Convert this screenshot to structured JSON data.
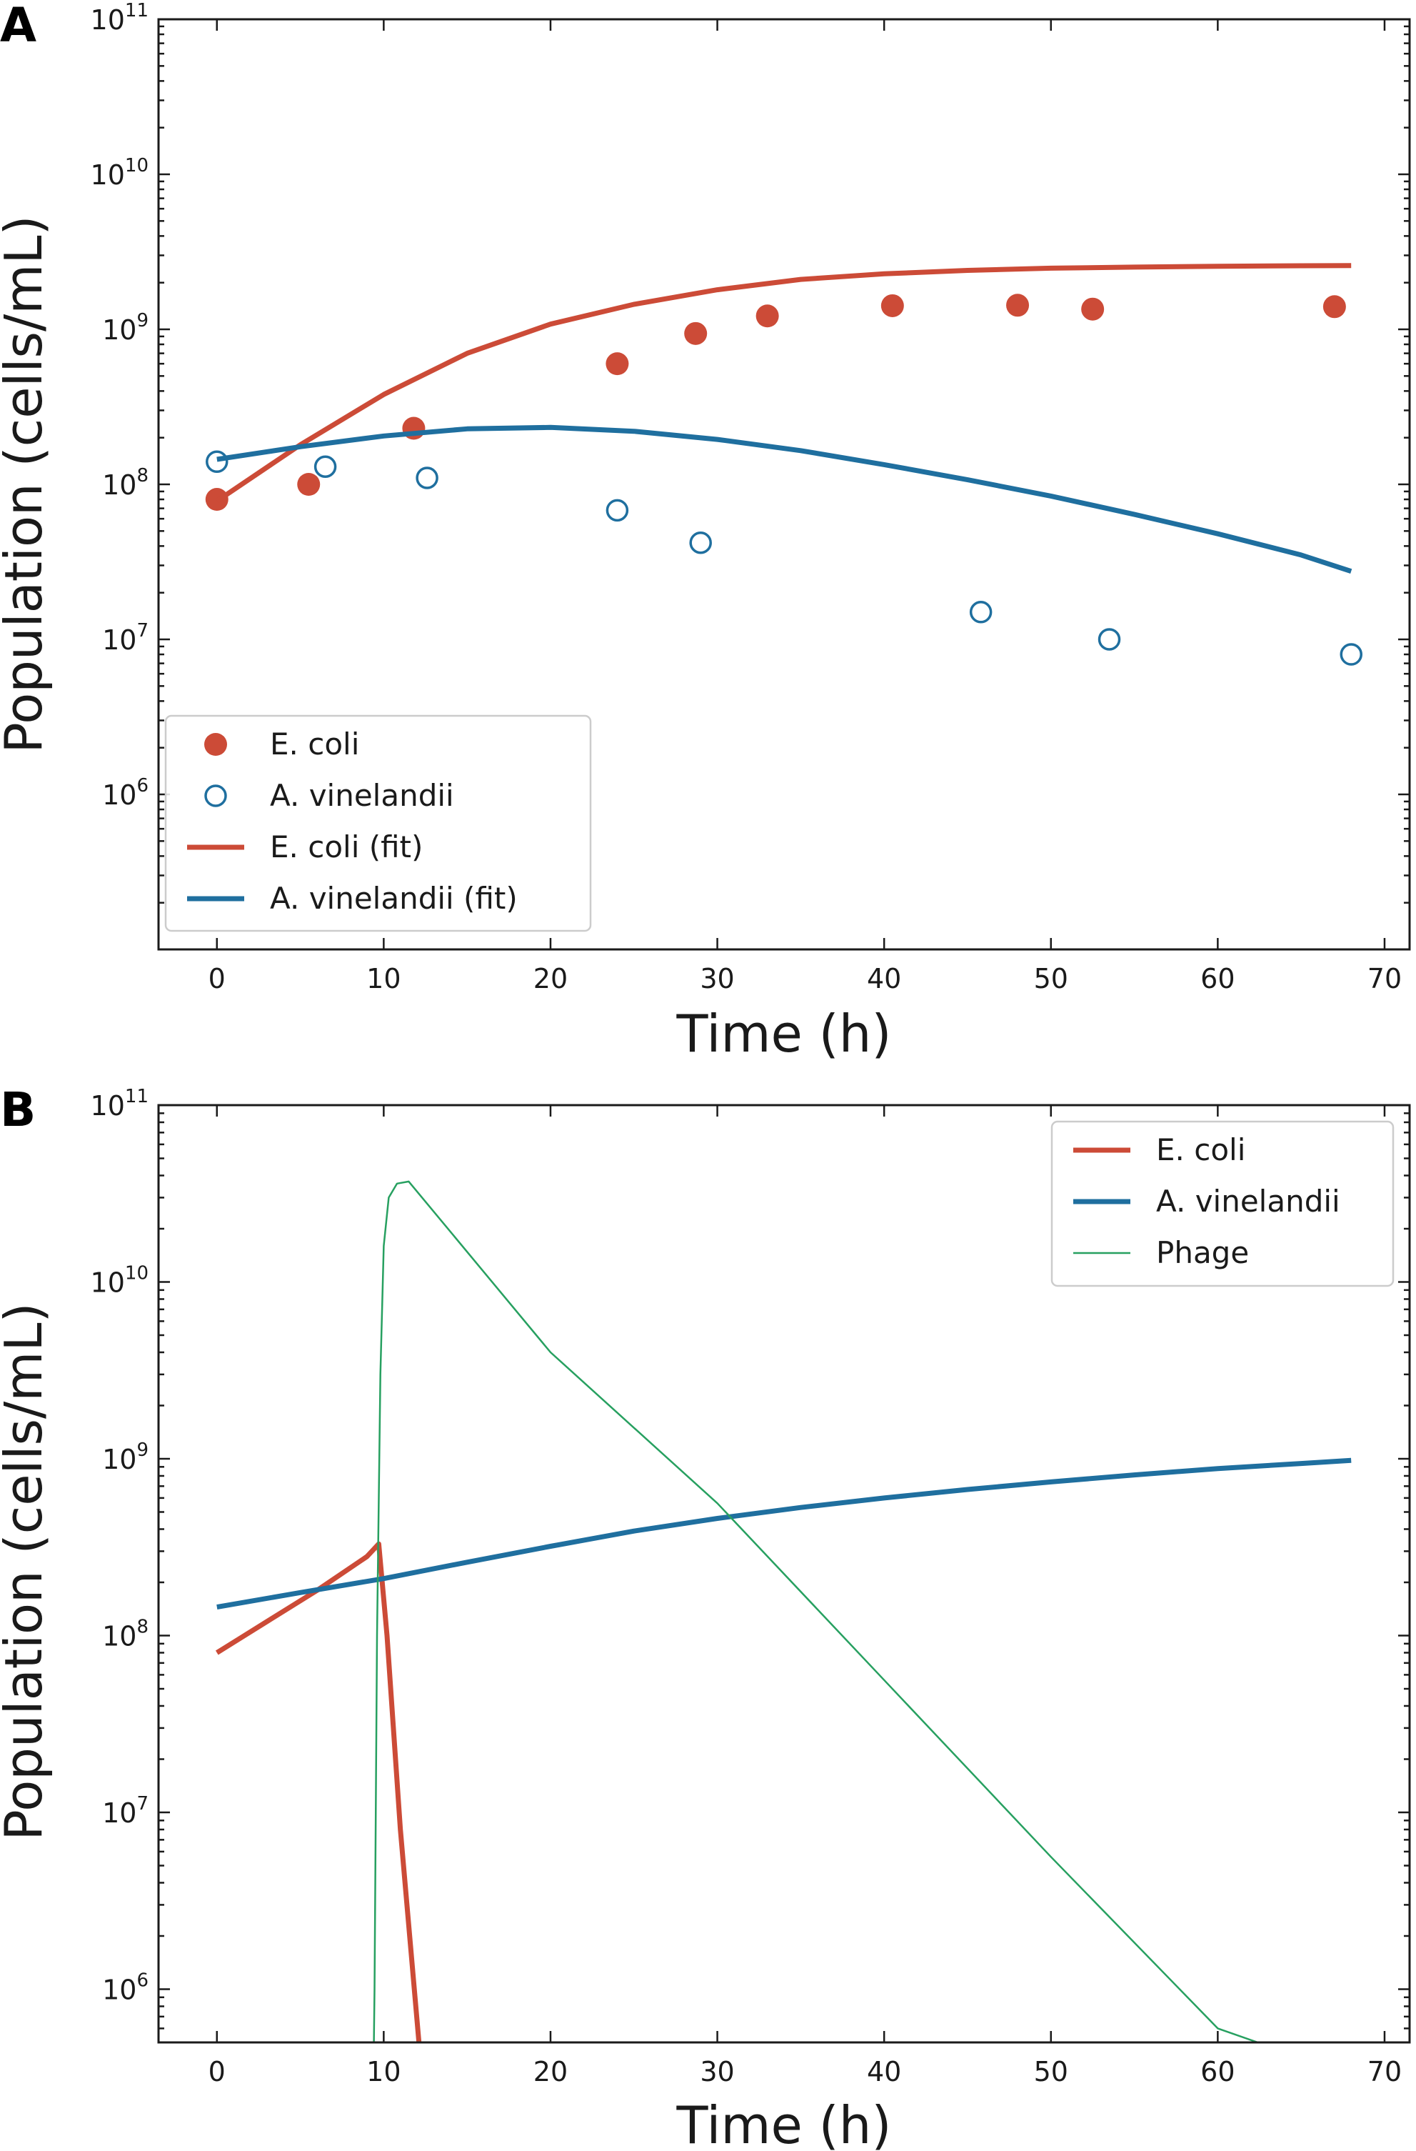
{
  "colors": {
    "ecoli": "#cc4b37",
    "avinelandii": "#1f6f9f",
    "phage": "#27a060"
  },
  "chart_data": [
    {
      "panel": "A",
      "type": "scatter",
      "xlabel": "Time (h)",
      "ylabel": "Population (cells/mL)",
      "xlim": [
        -3.5,
        71.5
      ],
      "ylim": [
        100000,
        100000000000
      ],
      "yscale": "log",
      "xticks": [
        0,
        10,
        20,
        30,
        40,
        50,
        60,
        70
      ],
      "yticks": [
        {
          "value": 1000000,
          "base": "10",
          "exp": "6"
        },
        {
          "value": 10000000,
          "base": "10",
          "exp": "7"
        },
        {
          "value": 100000000,
          "base": "10",
          "exp": "8"
        },
        {
          "value": 1000000000,
          "base": "10",
          "exp": "9"
        },
        {
          "value": 10000000000,
          "base": "10",
          "exp": "10"
        },
        {
          "value": 100000000000,
          "base": "10",
          "exp": "11"
        }
      ],
      "legend_position": "lower-left",
      "series": [
        {
          "name": "E. coli",
          "kind": "markers",
          "marker": "filled-circle",
          "color": "#cc4b37",
          "x": [
            0,
            5.5,
            11.8,
            24,
            28.7,
            33,
            40.5,
            48,
            52.5,
            67
          ],
          "y": [
            80000000,
            100000000,
            230000000,
            600000000,
            940000000,
            1220000000,
            1420000000,
            1430000000,
            1350000000,
            1400000000
          ]
        },
        {
          "name": "A. vinelandii",
          "kind": "markers",
          "marker": "open-circle",
          "color": "#1f6f9f",
          "x": [
            0,
            6.5,
            12.6,
            24,
            29,
            45.8,
            53.5,
            68
          ],
          "y": [
            140000000,
            130000000,
            110000000,
            68000000,
            42000000,
            15000000,
            10000000,
            8000000
          ]
        },
        {
          "name": "E. coli (fit)",
          "kind": "line",
          "width": 7,
          "color": "#cc4b37",
          "x": [
            0,
            5,
            10,
            15,
            20,
            25,
            30,
            35,
            40,
            45,
            50,
            55,
            60,
            65,
            68
          ],
          "y": [
            78000000,
            180000000,
            380000000,
            700000000,
            1080000000,
            1450000000,
            1800000000,
            2100000000,
            2280000000,
            2400000000,
            2480000000,
            2520000000,
            2550000000,
            2570000000,
            2580000000
          ]
        },
        {
          "name": "A. vinelandii (fit)",
          "kind": "line",
          "width": 7,
          "color": "#1f6f9f",
          "x": [
            0,
            5,
            10,
            15,
            20,
            25,
            30,
            35,
            40,
            45,
            50,
            55,
            60,
            65,
            68
          ],
          "y": [
            145000000,
            175000000,
            205000000,
            228000000,
            233000000,
            220000000,
            195000000,
            165000000,
            134000000,
            107000000,
            84000000,
            64000000,
            48000000,
            35000000,
            27500000
          ]
        }
      ]
    },
    {
      "panel": "B",
      "type": "line",
      "xlabel": "Time (h)",
      "ylabel": "Population (cells/mL)",
      "xlim": [
        -3.5,
        71.5
      ],
      "ylim": [
        500000,
        100000000000
      ],
      "yscale": "log",
      "xticks": [
        0,
        10,
        20,
        30,
        40,
        50,
        60,
        70
      ],
      "yticks": [
        {
          "value": 1000000,
          "base": "10",
          "exp": "6"
        },
        {
          "value": 10000000,
          "base": "10",
          "exp": "7"
        },
        {
          "value": 100000000,
          "base": "10",
          "exp": "8"
        },
        {
          "value": 1000000000,
          "base": "10",
          "exp": "9"
        },
        {
          "value": 10000000000,
          "base": "10",
          "exp": "10"
        },
        {
          "value": 100000000000,
          "base": "10",
          "exp": "11"
        }
      ],
      "legend_position": "upper-right",
      "series": [
        {
          "name": "E. coli",
          "kind": "line",
          "width": 7,
          "color": "#cc4b37",
          "x": [
            0,
            3,
            6,
            9,
            9.7,
            10.2,
            11,
            12.2
          ],
          "y": [
            80000000,
            120000000,
            180000000,
            280000000,
            330000000,
            100000000,
            8000000,
            400000
          ]
        },
        {
          "name": "A. vinelandii",
          "kind": "line",
          "width": 7,
          "color": "#1f6f9f",
          "x": [
            0,
            5,
            10,
            15,
            20,
            25,
            30,
            35,
            40,
            45,
            50,
            55,
            60,
            65,
            68
          ],
          "y": [
            145000000,
            175000000,
            210000000,
            260000000,
            320000000,
            390000000,
            460000000,
            530000000,
            600000000,
            670000000,
            740000000,
            810000000,
            880000000,
            940000000,
            980000000
          ]
        },
        {
          "name": "Phage",
          "kind": "line",
          "width": 2.5,
          "color": "#27a060",
          "x": [
            9.4,
            9.45,
            9.6,
            9.8,
            10.0,
            10.3,
            10.8,
            11.5,
            20,
            30,
            40,
            50,
            60,
            62.4
          ],
          "y": [
            400000,
            1000000,
            100000000,
            3000000000,
            16000000000,
            30000000000,
            36000000000,
            37000000000,
            4000000000,
            560000000,
            56000000,
            5600000,
            600000,
            500000
          ]
        }
      ]
    }
  ]
}
